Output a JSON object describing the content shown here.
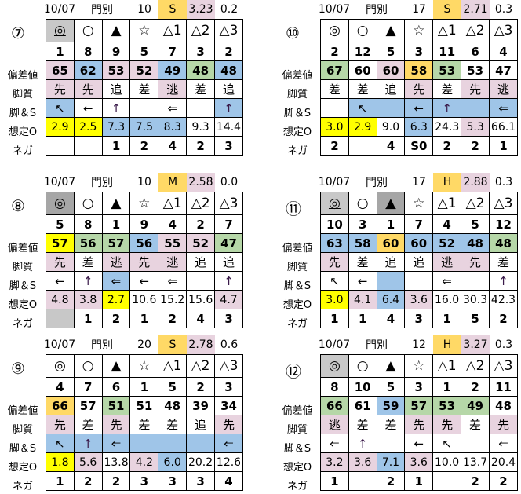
{
  "palette": {
    "p": "#e8d3df",
    "b": "#9fc5e8",
    "g": "#b6d7a8",
    "y": "#ffff00",
    "o": "#ffd966",
    "G": "#c8c8c8",
    "D": "#a6a6a6"
  },
  "row_labels": [
    "偏差値",
    "脚質",
    "脚＆S",
    "想定O",
    "ネガ"
  ],
  "marks": [
    "◎",
    "○",
    "▲",
    "☆",
    "△1",
    "△2",
    "△3"
  ],
  "races": [
    {
      "num": "⑦",
      "date": "10/07",
      "venue": "門別",
      "field": "10",
      "grade": "S",
      "val1": "3.23",
      "val2": "0.2",
      "mark_bg": [
        "G",
        "",
        "",
        "",
        "",
        "",
        ""
      ],
      "mark_underline": [
        true,
        false,
        false,
        false,
        false,
        false,
        false
      ],
      "horses": [
        "1",
        "8",
        "9",
        "5",
        "7",
        "3",
        "2"
      ],
      "dev": [
        "65",
        "62",
        "53",
        "52",
        "49",
        "48",
        "48"
      ],
      "dev_bg": [
        "p",
        "b",
        "p",
        "p",
        "b",
        "g",
        "b"
      ],
      "style": [
        "先",
        "先",
        "追",
        "差",
        "逃",
        "差",
        "追"
      ],
      "style_bg": [
        "p",
        "p",
        "",
        "",
        "p",
        "",
        ""
      ],
      "arrows": [
        "↖",
        "←",
        "↑",
        "",
        "⇐",
        "",
        "↑"
      ],
      "arrows_bg": [
        "b",
        "",
        "",
        "",
        "",
        "",
        "b"
      ],
      "odds": [
        "2.9",
        "2.5",
        "7.3",
        "7.5",
        "8.3",
        "9.3",
        "14.4"
      ],
      "odds_bg": [
        "y",
        "y",
        "b",
        "b",
        "b",
        "",
        ""
      ],
      "nega": [
        "",
        "",
        "1",
        "2",
        "4",
        "2",
        "3"
      ],
      "nega_bg": [
        "",
        "",
        "",
        "",
        "",
        "",
        ""
      ]
    },
    {
      "num": "⑩",
      "date": "10/07",
      "venue": "門別",
      "field": "17",
      "grade": "S",
      "val1": "2.71",
      "val2": "0.3",
      "mark_bg": [
        "",
        "",
        "",
        "",
        "",
        "",
        ""
      ],
      "mark_underline": [
        false,
        false,
        false,
        false,
        false,
        false,
        false
      ],
      "horses": [
        "2",
        "12",
        "5",
        "3",
        "11",
        "6",
        "4"
      ],
      "dev": [
        "67",
        "60",
        "60",
        "58",
        "53",
        "53",
        "47"
      ],
      "dev_bg": [
        "g",
        "",
        "p",
        "o",
        "g",
        "",
        ""
      ],
      "style": [
        "差",
        "差",
        "追",
        "先",
        "差",
        "先",
        "逃"
      ],
      "style_bg": [
        "",
        "",
        "",
        "p",
        "",
        "p",
        "p"
      ],
      "arrows": [
        "",
        "↖",
        "",
        "←",
        "↑",
        "",
        "⇐"
      ],
      "arrows_bg": [
        "",
        "b",
        "b",
        "b",
        "b",
        "b",
        "b"
      ],
      "odds": [
        "3.0",
        "2.9",
        "9.0",
        "6.3",
        "24.3",
        "5.3",
        "66.1"
      ],
      "odds_bg": [
        "y",
        "y",
        "",
        "b",
        "",
        "p",
        ""
      ],
      "nega": [
        "2",
        "",
        "4",
        "S0",
        "2",
        "2",
        "1"
      ],
      "nega_bg": [
        "",
        "",
        "",
        "",
        "",
        "",
        ""
      ]
    },
    {
      "num": "⑧",
      "date": "10/07",
      "venue": "門別",
      "field": "10",
      "grade": "M",
      "val1": "2.58",
      "val2": "0.0",
      "mark_bg": [
        "D",
        "",
        "",
        "",
        "",
        "",
        ""
      ],
      "mark_underline": [
        false,
        false,
        false,
        false,
        false,
        false,
        false
      ],
      "horses": [
        "5",
        "8",
        "1",
        "9",
        "4",
        "2",
        "7"
      ],
      "dev": [
        "57",
        "56",
        "57",
        "56",
        "55",
        "52",
        "47"
      ],
      "dev_bg": [
        "y",
        "g",
        "g",
        "b",
        "p",
        "p",
        "g"
      ],
      "style": [
        "先",
        "差",
        "逃",
        "先",
        "逃",
        "追",
        "追"
      ],
      "style_bg": [
        "p",
        "",
        "p",
        "p",
        "p",
        "",
        ""
      ],
      "arrows": [
        "←",
        "↑",
        "⇐",
        "←",
        "⇐",
        "",
        "↑"
      ],
      "arrows_bg": [
        "",
        "",
        "b",
        "",
        "",
        "",
        ""
      ],
      "odds": [
        "4.8",
        "3.8",
        "2.7",
        "10.6",
        "15.2",
        "15.6",
        "4.7"
      ],
      "odds_bg": [
        "p",
        "p",
        "y",
        "",
        "",
        "",
        "p"
      ],
      "nega": [
        "",
        "1",
        "2",
        "1",
        "2",
        "4",
        "3"
      ],
      "nega_bg": [
        "G",
        "",
        "",
        "",
        "",
        "",
        ""
      ]
    },
    {
      "num": "⑪",
      "date": "10/07",
      "venue": "門別",
      "field": "17",
      "grade": "H",
      "val1": "2.88",
      "val2": "0.3",
      "mark_bg": [
        "G",
        "",
        "D",
        "",
        "",
        "",
        ""
      ],
      "mark_underline": [
        true,
        false,
        true,
        false,
        false,
        false,
        false
      ],
      "horses": [
        "10",
        "3",
        "1",
        "7",
        "4",
        "5",
        "12"
      ],
      "dev": [
        "63",
        "58",
        "60",
        "60",
        "52",
        "48",
        "48"
      ],
      "dev_bg": [
        "b",
        "b",
        "o",
        "b",
        "b",
        "b",
        "g"
      ],
      "style": [
        "先",
        "差",
        "追",
        "追",
        "逃",
        "先",
        "差"
      ],
      "style_bg": [
        "p",
        "",
        "",
        "",
        "p",
        "p",
        ""
      ],
      "arrows": [
        "↖",
        "←",
        "",
        "",
        "⇐",
        "",
        "↑"
      ],
      "arrows_bg": [
        "",
        "",
        "b",
        "",
        "",
        "",
        ""
      ],
      "odds": [
        "3.0",
        "4.1",
        "6.4",
        "3.6",
        "16.0",
        "30.3",
        "42.3"
      ],
      "odds_bg": [
        "y",
        "p",
        "b",
        "p",
        "",
        "",
        ""
      ],
      "nega": [
        "1",
        "1",
        "4",
        "3",
        "1",
        "5",
        "2"
      ],
      "nega_bg": [
        "",
        "",
        "",
        "",
        "",
        "",
        ""
      ]
    },
    {
      "num": "⑨",
      "date": "10/07",
      "venue": "門別",
      "field": "20",
      "grade": "S",
      "val1": "2.78",
      "val2": "0.6",
      "mark_bg": [
        "",
        "",
        "",
        "",
        "",
        "",
        ""
      ],
      "mark_underline": [
        false,
        false,
        false,
        false,
        false,
        false,
        false
      ],
      "horses": [
        "4",
        "7",
        "6",
        "1",
        "5",
        "2",
        "3"
      ],
      "dev": [
        "66",
        "57",
        "51",
        "51",
        "48",
        "39",
        "34"
      ],
      "dev_bg": [
        "o",
        "",
        "g",
        "",
        "",
        "",
        ""
      ],
      "style": [
        "先",
        "差",
        "先",
        "差",
        "差",
        "追",
        "先"
      ],
      "style_bg": [
        "p",
        "",
        "p",
        "",
        "",
        "",
        "p"
      ],
      "arrows": [
        "↖",
        "↑",
        "⇐",
        "",
        "",
        "",
        "⇐"
      ],
      "arrows_bg": [
        "b",
        "b",
        "b",
        "b",
        "b",
        "b",
        "b"
      ],
      "odds": [
        "1.8",
        "5.6",
        "13.8",
        "4.2",
        "6.0",
        "20.2",
        "12.6"
      ],
      "odds_bg": [
        "y",
        "p",
        "",
        "p",
        "b",
        "",
        ""
      ],
      "nega": [
        "1",
        "2",
        "2",
        "3",
        "3",
        "3",
        "4"
      ],
      "nega_bg": [
        "",
        "",
        "",
        "",
        "",
        "",
        ""
      ]
    },
    {
      "num": "⑫",
      "date": "10/07",
      "venue": "門別",
      "field": "12",
      "grade": "H",
      "val1": "3.27",
      "val2": "0.3",
      "mark_bg": [
        "G",
        "",
        "",
        "",
        "",
        "",
        ""
      ],
      "mark_underline": [
        true,
        false,
        false,
        false,
        false,
        false,
        false
      ],
      "horses": [
        "8",
        "10",
        "5",
        "3",
        "1",
        "2",
        "11"
      ],
      "dev": [
        "66",
        "61",
        "59",
        "57",
        "53",
        "49",
        "48"
      ],
      "dev_bg": [
        "g",
        "",
        "b",
        "g",
        "g",
        "g",
        ""
      ],
      "style": [
        "逃",
        "差",
        "差",
        "先",
        "先",
        "差",
        "先"
      ],
      "style_bg": [
        "p",
        "",
        "",
        "p",
        "p",
        "",
        "p"
      ],
      "arrows": [
        "⇐",
        "↑",
        "",
        "←",
        "↖",
        "",
        "⇐"
      ],
      "arrows_bg": [
        "",
        "",
        "",
        "",
        "",
        "",
        ""
      ],
      "odds": [
        "3.2",
        "3.6",
        "7.1",
        "3.6",
        "10.0",
        "13.7",
        "20.4"
      ],
      "odds_bg": [
        "p",
        "p",
        "b",
        "p",
        "",
        "",
        ""
      ],
      "nega": [
        "1",
        "",
        "2",
        "1",
        "",
        "2",
        "2"
      ],
      "nega_bg": [
        "",
        "",
        "",
        "",
        "",
        "",
        ""
      ]
    }
  ]
}
